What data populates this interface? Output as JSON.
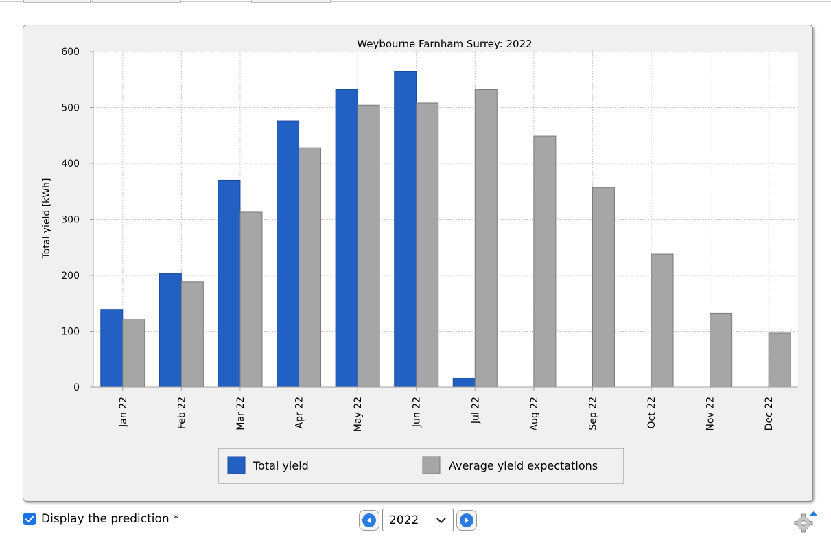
{
  "chart_data": {
    "type": "bar",
    "title": "Weybourne Farnham Surrey: 2022",
    "ylabel": "Total yield [kWh]",
    "xlabel": "",
    "ylim": [
      0,
      600
    ],
    "yticks": [
      "0",
      "100",
      "200",
      "300",
      "400",
      "500",
      "600"
    ],
    "grid": true,
    "legend_position": "bottom",
    "categories": [
      "Jan 22",
      "Feb 22",
      "Mar 22",
      "Apr 22",
      "May 22",
      "Jun 22",
      "Jul 22",
      "Aug 22",
      "Sep 22",
      "Oct 22",
      "Nov 22",
      "Dec 22"
    ],
    "series": [
      {
        "name": "Total yield",
        "color": "#2360c4",
        "values": [
          139,
          203,
          370,
          476,
          532,
          564,
          16,
          null,
          null,
          null,
          null,
          null
        ]
      },
      {
        "name": "Average yield expectations",
        "color": "#a6a6a6",
        "values": [
          122,
          188,
          313,
          428,
          504,
          508,
          532,
          449,
          357,
          238,
          132,
          97
        ]
      }
    ]
  },
  "controls": {
    "prediction_label": "Display the prediction *",
    "prediction_checked": true,
    "year_value": "2022"
  },
  "icons": {
    "prev": "caret-left-icon",
    "next": "caret-right-icon",
    "dropdown": "chevron-down-icon",
    "settings": "gear-icon",
    "check": "checkmark-icon"
  }
}
